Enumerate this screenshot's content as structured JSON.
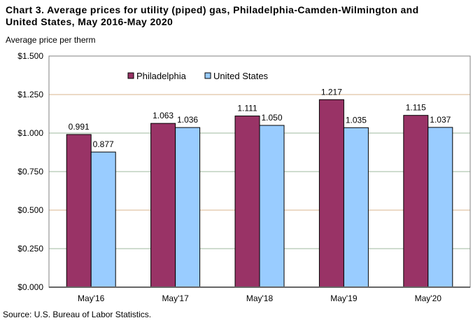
{
  "chart_data": {
    "type": "bar",
    "title": "Chart 3. Average prices for utility (piped) gas, Philadelphia-Camden-Wilmington and United States, May 2016-May 2020",
    "title_lines": [
      "Chart 3. Average prices for utility (piped) gas, Philadelphia-Camden-Wilmington and",
      "United States, May 2016-May 2020"
    ],
    "ylabel": "Average price per therm",
    "xlabel": "",
    "categories": [
      "May'16",
      "May'17",
      "May'18",
      "May'19",
      "May'20"
    ],
    "series": [
      {
        "name": "Philadelphia",
        "values": [
          0.991,
          1.063,
          1.111,
          1.217,
          1.115
        ],
        "labels": [
          "0.991",
          "1.063",
          "1.111",
          "1.217",
          "1.115"
        ],
        "color": "#993366"
      },
      {
        "name": "United States",
        "values": [
          0.877,
          1.036,
          1.05,
          1.035,
          1.037
        ],
        "labels": [
          "0.877",
          "1.036",
          "1.050",
          "1.035",
          "1.037"
        ],
        "color": "#99ccff"
      }
    ],
    "ylim": [
      0,
      1.5
    ],
    "yticks": [
      "$0.000",
      "$0.250",
      "$0.500",
      "$0.750",
      "$1.000",
      "$1.250",
      "$1.500"
    ],
    "grid": true,
    "legend_position": "top-center",
    "source": "Source: U.S. Bureau of Labor Statistics."
  }
}
